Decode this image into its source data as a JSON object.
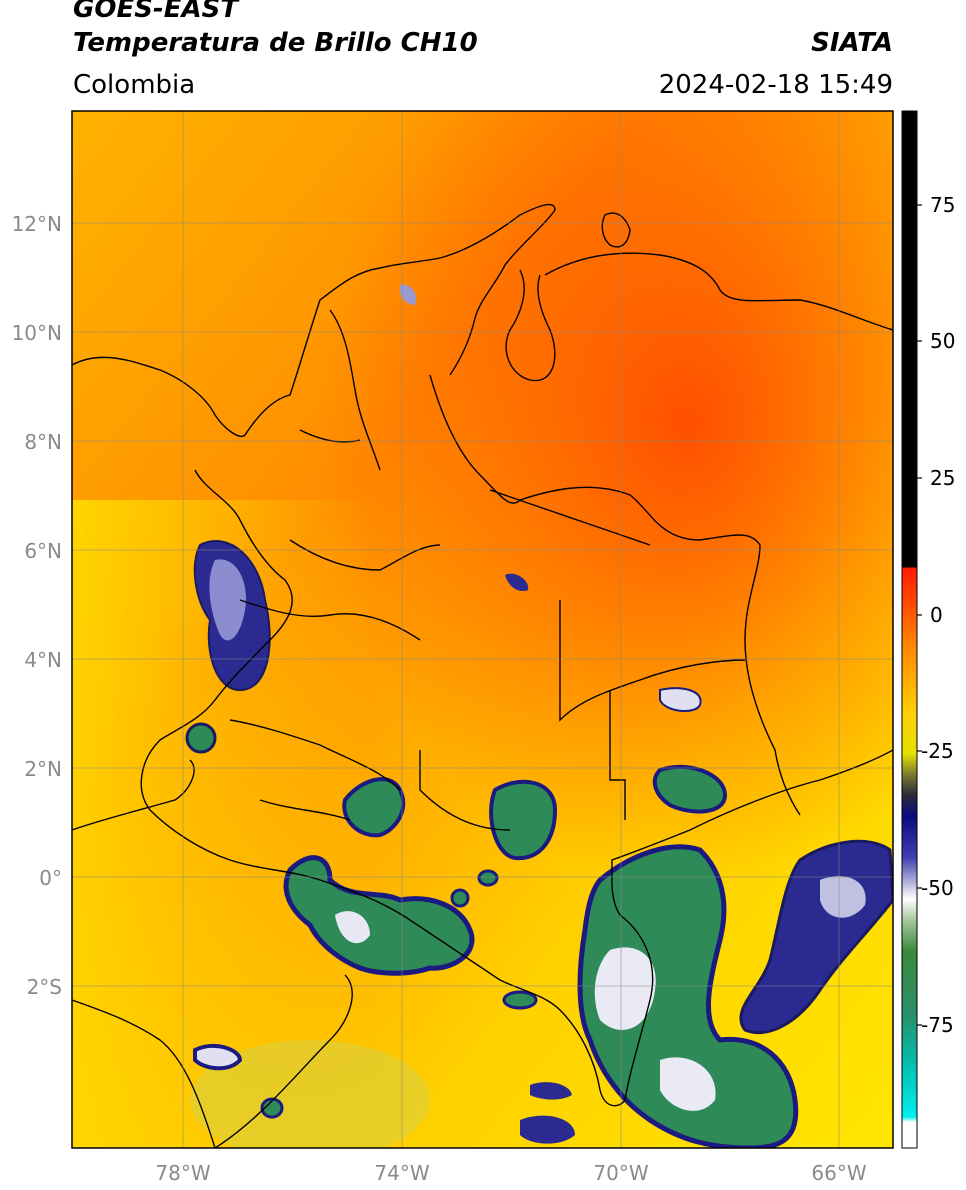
{
  "header": {
    "satellite": "GOES-EAST",
    "product": "Temperatura de Brillo CH10",
    "agency": "SIATA",
    "region": "Colombia",
    "datetime": "2024-02-18 15:49"
  },
  "axes": {
    "lat_ticks": [
      {
        "value": 12,
        "label": "12°N"
      },
      {
        "value": 10,
        "label": "10°N"
      },
      {
        "value": 8,
        "label": "8°N"
      },
      {
        "value": 6,
        "label": "6°N"
      },
      {
        "value": 4,
        "label": "4°N"
      },
      {
        "value": 2,
        "label": "2°N"
      },
      {
        "value": 0,
        "label": "0°"
      },
      {
        "value": -2,
        "label": "2°S"
      }
    ],
    "lon_ticks": [
      {
        "value": -78,
        "label": "78°W"
      },
      {
        "value": -74,
        "label": "74°W"
      },
      {
        "value": -70,
        "label": "70°W"
      },
      {
        "value": -66,
        "label": "66°W"
      }
    ]
  },
  "colorbar": {
    "ticks": [
      {
        "value": 75,
        "label": "75"
      },
      {
        "value": 50,
        "label": "50"
      },
      {
        "value": 25,
        "label": "25"
      },
      {
        "value": 0,
        "label": "0"
      },
      {
        "value": -25,
        "label": "-25"
      },
      {
        "value": -50,
        "label": "-50"
      },
      {
        "value": -75,
        "label": "-75"
      }
    ]
  },
  "colors": {
    "warm": "#ff6a00",
    "mid": "#ffb000",
    "cool": "#ffe600",
    "deep_cloud": "#1a1a80",
    "cloud_core": "#2e8b57",
    "grid": "#888888"
  }
}
